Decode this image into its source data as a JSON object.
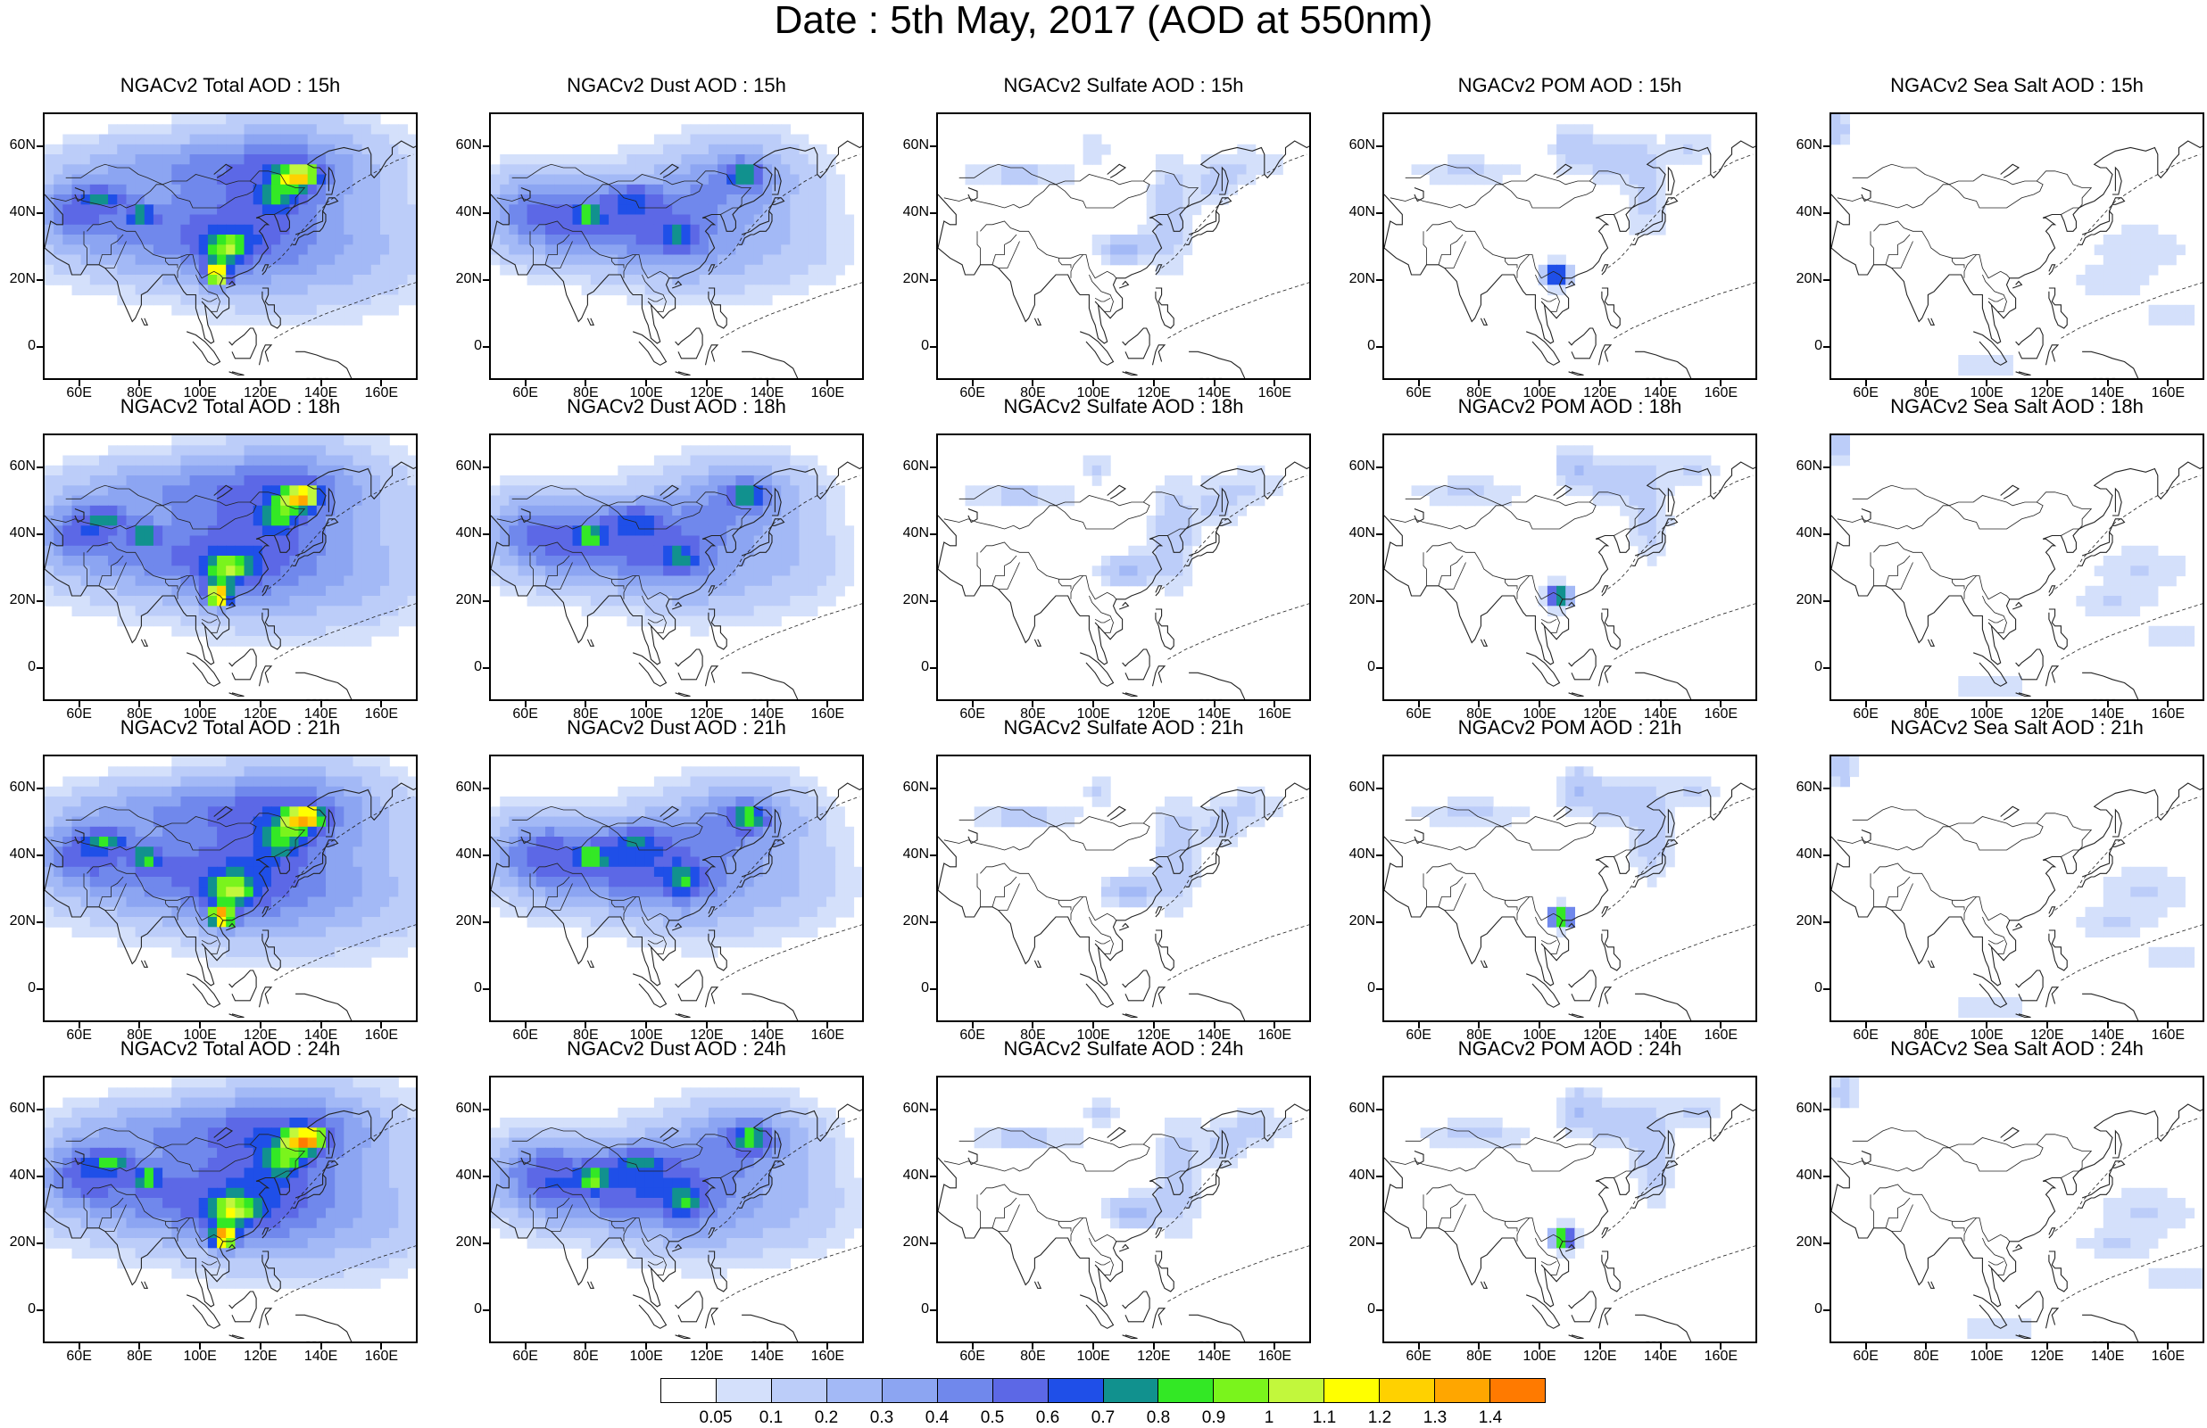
{
  "title": "Date : 5th May, 2017 (AOD at 550nm)",
  "map": {
    "lon_range": [
      48,
      172
    ],
    "lat_range": [
      -10,
      70
    ],
    "lon_ticks": [
      60,
      80,
      100,
      120,
      140,
      160
    ],
    "lon_tick_labels": [
      "60E",
      "80E",
      "100E",
      "120E",
      "140E",
      "160E"
    ],
    "lat_ticks": [
      0,
      20,
      40,
      60
    ],
    "lat_tick_labels": [
      "0",
      "20N",
      "40N",
      "60N"
    ]
  },
  "panels": [
    {
      "title": "NGACv2 Total AOD : 15h",
      "species": "total",
      "hour": 15
    },
    {
      "title": "NGACv2 Dust AOD : 15h",
      "species": "dust",
      "hour": 15
    },
    {
      "title": "NGACv2 Sulfate AOD : 15h",
      "species": "sulfate",
      "hour": 15
    },
    {
      "title": "NGACv2 POM AOD : 15h",
      "species": "pom",
      "hour": 15
    },
    {
      "title": "NGACv2 Sea Salt AOD : 15h",
      "species": "seasalt",
      "hour": 15
    },
    {
      "title": "NGACv2 Total AOD : 18h",
      "species": "total",
      "hour": 18
    },
    {
      "title": "NGACv2 Dust AOD : 18h",
      "species": "dust",
      "hour": 18
    },
    {
      "title": "NGACv2 Sulfate AOD : 18h",
      "species": "sulfate",
      "hour": 18
    },
    {
      "title": "NGACv2 POM AOD : 18h",
      "species": "pom",
      "hour": 18
    },
    {
      "title": "NGACv2 Sea Salt AOD : 18h",
      "species": "seasalt",
      "hour": 18
    },
    {
      "title": "NGACv2 Total AOD : 21h",
      "species": "total",
      "hour": 21
    },
    {
      "title": "NGACv2 Dust AOD : 21h",
      "species": "dust",
      "hour": 21
    },
    {
      "title": "NGACv2 Sulfate AOD : 21h",
      "species": "sulfate",
      "hour": 21
    },
    {
      "title": "NGACv2 POM AOD : 21h",
      "species": "pom",
      "hour": 21
    },
    {
      "title": "NGACv2 Sea Salt AOD : 21h",
      "species": "seasalt",
      "hour": 21
    },
    {
      "title": "NGACv2 Total AOD : 24h",
      "species": "total",
      "hour": 24
    },
    {
      "title": "NGACv2 Dust AOD : 24h",
      "species": "dust",
      "hour": 24
    },
    {
      "title": "NGACv2 Sulfate AOD : 24h",
      "species": "sulfate",
      "hour": 24
    },
    {
      "title": "NGACv2 POM AOD : 24h",
      "species": "pom",
      "hour": 24
    },
    {
      "title": "NGACv2 Sea Salt  AOD : 24h",
      "species": "seasalt",
      "hour": 24
    }
  ],
  "colorbar": {
    "labels": [
      "0.05",
      "0.1",
      "0.2",
      "0.3",
      "0.4",
      "0.5",
      "0.6",
      "0.7",
      "0.8",
      "0.9",
      "1",
      "1.1",
      "1.2",
      "1.3",
      "1.4"
    ],
    "colors": [
      "#ffffff",
      "#d4e0fb",
      "#bccdf9",
      "#a3b9f6",
      "#8ca5f2",
      "#7088ec",
      "#5c68e6",
      "#1f4fe8",
      "#11918e",
      "#33e825",
      "#7af41c",
      "#c2f73c",
      "#ffff00",
      "#ffd100",
      "#ffa600",
      "#ff7a00",
      "#ff2a00"
    ]
  }
}
